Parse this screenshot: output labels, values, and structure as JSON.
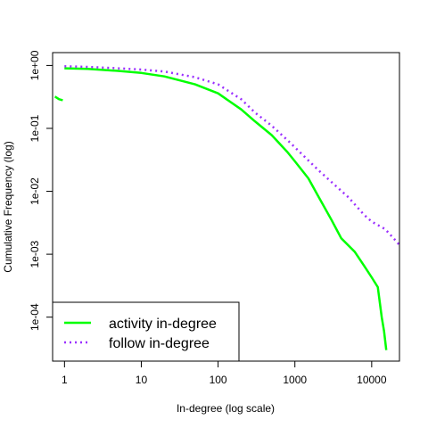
{
  "chart_data": {
    "type": "line",
    "title": "",
    "xlabel": "In-degree (log scale)",
    "ylabel": "Cumulative Frequency (log)",
    "x_scale": "log",
    "y_scale": "log",
    "xlim": [
      0.7,
      23000
    ],
    "ylim": [
      2e-05,
      1.6
    ],
    "x_ticks": [
      1,
      10,
      100,
      1000,
      10000
    ],
    "x_tick_labels": [
      "1",
      "10",
      "100",
      "1000",
      "10000"
    ],
    "y_ticks": [
      1,
      0.1,
      0.01,
      0.001,
      0.0001
    ],
    "y_tick_labels": [
      "1e+00",
      "1e-01",
      "1e-02",
      "1e-03",
      "1e-04"
    ],
    "grid": false,
    "legend_position": "bottom-left",
    "series": [
      {
        "name": "activity in-degree",
        "color": "#00ff00",
        "style": "solid",
        "segments": [
          [
            [
              0.75,
              0.32
            ],
            [
              0.85,
              0.29
            ],
            [
              0.95,
              0.28
            ]
          ],
          [
            [
              1,
              0.9
            ],
            [
              2,
              0.88
            ],
            [
              5,
              0.82
            ],
            [
              10,
              0.76
            ],
            [
              20,
              0.67
            ],
            [
              50,
              0.5
            ],
            [
              100,
              0.36
            ],
            [
              200,
              0.2
            ],
            [
              300,
              0.13
            ],
            [
              500,
              0.078
            ],
            [
              800,
              0.042
            ],
            [
              1000,
              0.03
            ],
            [
              1500,
              0.016
            ],
            [
              2000,
              0.0085
            ],
            [
              3000,
              0.0035
            ],
            [
              4000,
              0.0018
            ],
            [
              6000,
              0.0011
            ],
            [
              8000,
              0.00065
            ],
            [
              10000,
              0.00043
            ],
            [
              12000,
              0.0003
            ],
            [
              13500,
              0.0001
            ],
            [
              14500,
              6e-05
            ],
            [
              15500,
              3e-05
            ]
          ]
        ]
      },
      {
        "name": "follow in-degree",
        "color": "#9b30ff",
        "style": "dotted",
        "segments": [
          [
            [
              1,
              0.97
            ],
            [
              2,
              0.95
            ],
            [
              5,
              0.9
            ],
            [
              10,
              0.86
            ],
            [
              20,
              0.8
            ],
            [
              50,
              0.65
            ],
            [
              100,
              0.5
            ],
            [
              200,
              0.29
            ],
            [
              300,
              0.18
            ],
            [
              500,
              0.11
            ],
            [
              800,
              0.065
            ],
            [
              1000,
              0.05
            ],
            [
              2000,
              0.022
            ],
            [
              3000,
              0.014
            ],
            [
              5000,
              0.008
            ],
            [
              8000,
              0.0042
            ],
            [
              10000,
              0.0033
            ],
            [
              15000,
              0.0025
            ],
            [
              20000,
              0.0017
            ],
            [
              23000,
              0.0014
            ]
          ]
        ]
      }
    ]
  }
}
